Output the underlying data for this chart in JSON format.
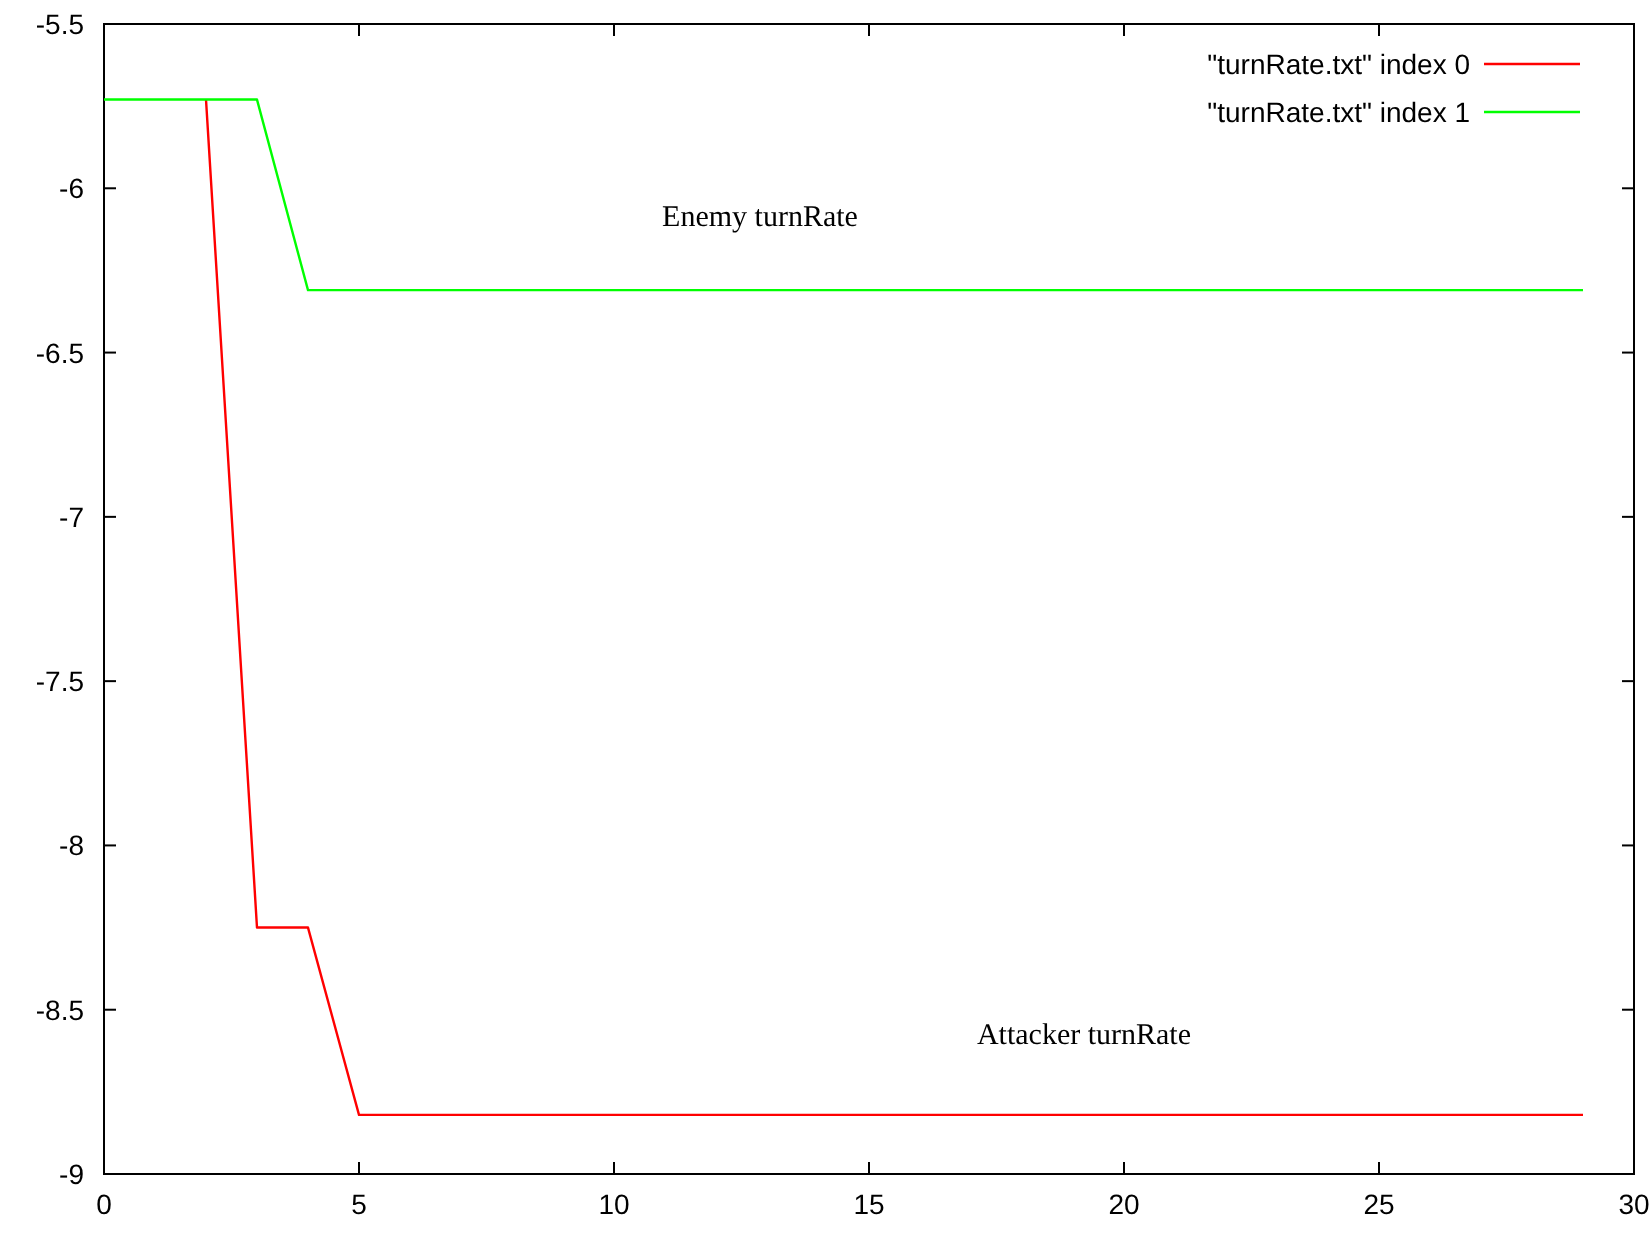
{
  "chart_data": {
    "type": "line",
    "legend": "top right",
    "grid": false,
    "line_style": "solid",
    "xlim": [
      0,
      30
    ],
    "xticks": [
      0,
      5,
      10,
      15,
      20,
      25,
      30
    ],
    "ylim": [
      -9,
      -5.5
    ],
    "yticks": [
      -9,
      -8.5,
      -8,
      -7.5,
      -7,
      -6.5,
      -6,
      -5.5
    ],
    "series": [
      {
        "name": "\"turnRate.txt\" index 0",
        "color": "#ff0000",
        "x": [
          2,
          3,
          4,
          5,
          29
        ],
        "values": [
          -5.73,
          -8.25,
          -8.25,
          -8.82,
          -8.82
        ]
      },
      {
        "name": "\"turnRate.txt\" index 1",
        "color": "#00ff00",
        "x": [
          0,
          1,
          2,
          3,
          4,
          29
        ],
        "values": [
          -5.73,
          -5.73,
          -5.73,
          -5.73,
          -6.31,
          -6.31
        ]
      }
    ],
    "annotations": [
      "Enemy turnRate",
      "Attacker turnRate"
    ]
  }
}
